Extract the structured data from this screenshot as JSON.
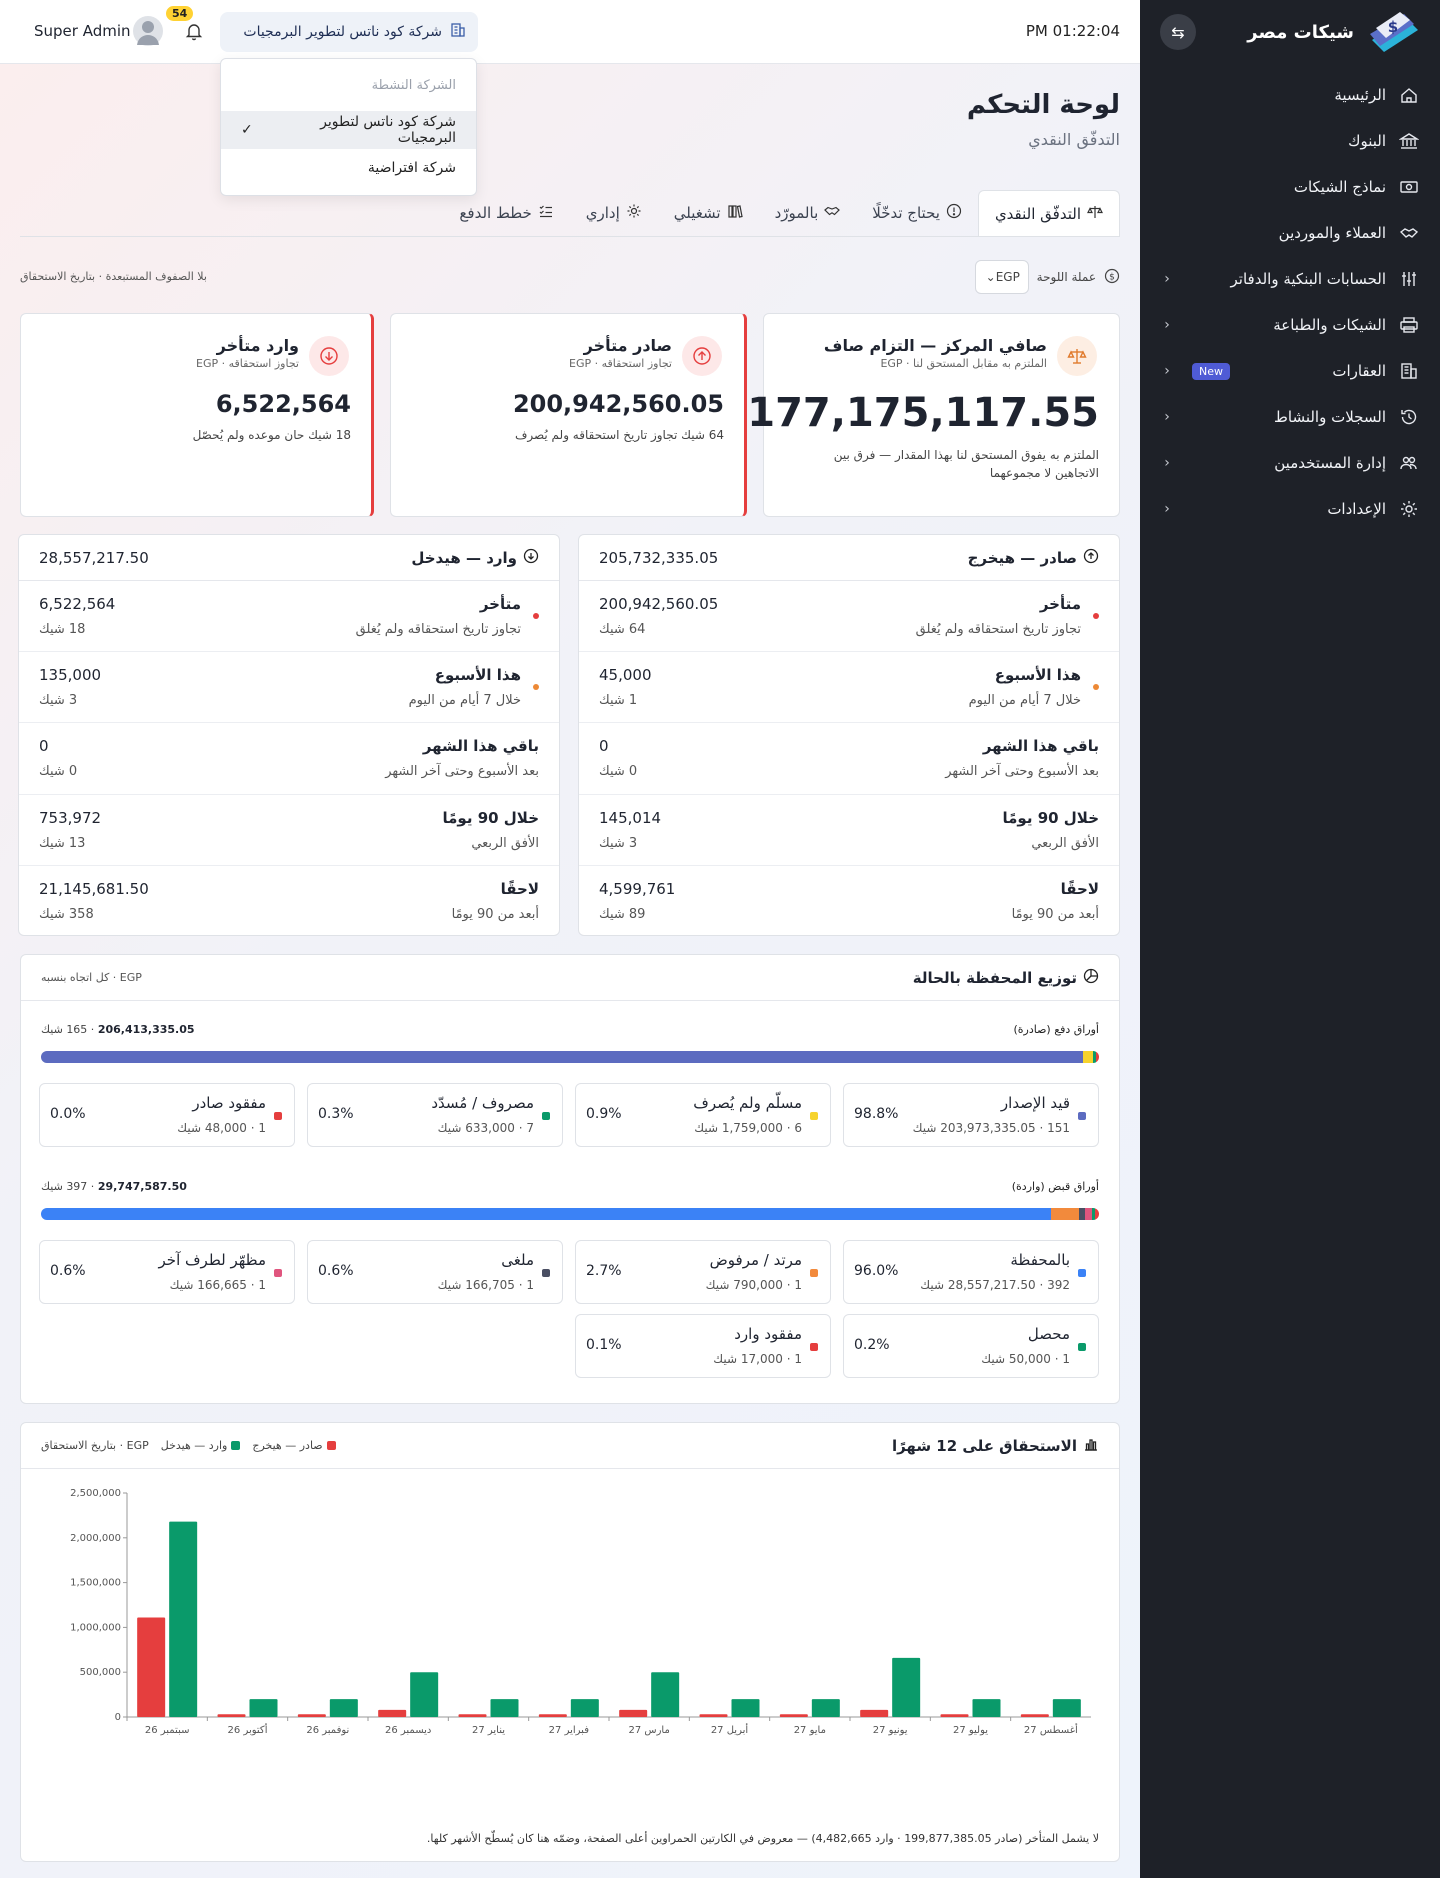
{
  "header": {
    "clock": "PM 01:22:04",
    "company": "شركة كود ناتس لتطوير البرمجيات",
    "notifications": "54",
    "user": "Super Admin"
  },
  "dropdown": {
    "title": "الشركة النشطة",
    "items": [
      {
        "label": "شركة كود ناتس لتطوير البرمجيات",
        "active": true
      },
      {
        "label": "شركة افتراضية",
        "active": false
      }
    ]
  },
  "sidebar": {
    "brand": "شيكات مصر",
    "items": [
      {
        "label": "الرئيسية",
        "icon": "home-icon",
        "chevron": false
      },
      {
        "label": "البنوك",
        "icon": "bank-icon",
        "chevron": false
      },
      {
        "label": "نماذج الشيكات",
        "icon": "cheque-icon",
        "chevron": false
      },
      {
        "label": "العملاء والموردين",
        "icon": "handshake-icon",
        "chevron": false
      },
      {
        "label": "الحسابات البنكية والدفاتر",
        "icon": "sliders-icon",
        "chevron": true
      },
      {
        "label": "الشيكات والطباعة",
        "icon": "printer-icon",
        "chevron": true
      },
      {
        "label": "العقارات",
        "icon": "building-icon",
        "chevron": true,
        "badge": "New"
      },
      {
        "label": "السجلات والنشاط",
        "icon": "history-icon",
        "chevron": true
      },
      {
        "label": "إدارة المستخدمين",
        "icon": "users-icon",
        "chevron": true
      },
      {
        "label": "الإعدادات",
        "icon": "gear-icon",
        "chevron": true
      }
    ]
  },
  "page": {
    "title": "لوحة التحكم",
    "subtitle": "التدفّق النقدي",
    "tabs": [
      {
        "label": "التدفّق النقدي",
        "icon": "scale-icon",
        "active": true
      },
      {
        "label": "يحتاج تدخّلًا",
        "icon": "alert-icon",
        "active": false
      },
      {
        "label": "بالمورّد",
        "icon": "handshake-icon",
        "active": false
      },
      {
        "label": "تشغيلي",
        "icon": "books-icon",
        "active": false
      },
      {
        "label": "إداري",
        "icon": "gear-icon",
        "active": false
      },
      {
        "label": "خطط الدفع",
        "icon": "checklist-icon",
        "active": false
      }
    ],
    "currency_label": "عملة اللوحة",
    "currency": "EGP",
    "note": "بلا الصفوف المستبعدة · بتاريخ الاستحقاق"
  },
  "kpis": {
    "net": {
      "title": "صافي المركز — التزام صاف",
      "sub": "الملتزم به مقابل المستحق لنا · EGP",
      "value": "177,175,117.55",
      "note": "الملتزم به يفوق المستحق لنا بهذا المقدار — فرق بين الاتجاهين لا مجموعهما"
    },
    "out_overdue": {
      "title": "صادر متأخر",
      "sub": "تجاوز استحقاقه · EGP",
      "value": "200,942,560.05",
      "note": "64 شيك تجاوز تاريخ استحقاقه ولم يُصرف"
    },
    "in_overdue": {
      "title": "وارد متأخر",
      "sub": "تجاوز استحقاقه · EGP",
      "value": "6,522,564",
      "note": "18 شيك حان موعده ولم يُحصّل"
    }
  },
  "outgoing": {
    "title": "صادر — هيخرج",
    "total": "205,732,335.05",
    "rows": [
      {
        "label": "متأخر",
        "sub": "تجاوز تاريخ استحقاقه ولم يُغلق",
        "amount": "200,942,560.05",
        "count": "64 شيك",
        "color": "#e53e3e"
      },
      {
        "label": "هذا الأسبوع",
        "sub": "خلال 7 أيام من اليوم",
        "amount": "45,000",
        "count": "1 شيك",
        "color": "#ed8936"
      },
      {
        "label": "باقي هذا الشهر",
        "sub": "بعد الأسبوع وحتى آخر الشهر",
        "amount": "0",
        "count": "0 شيك",
        "color": ""
      },
      {
        "label": "خلال 90 يومًا",
        "sub": "الأفق الربعي",
        "amount": "145,014",
        "count": "3 شيك",
        "color": ""
      },
      {
        "label": "لاحقًا",
        "sub": "أبعد من 90 يومًا",
        "amount": "4,599,761",
        "count": "89 شيك",
        "color": ""
      }
    ]
  },
  "incoming": {
    "title": "وارد — هيدخل",
    "total": "28,557,217.50",
    "rows": [
      {
        "label": "متأخر",
        "sub": "تجاوز تاريخ استحقاقه ولم يُغلق",
        "amount": "6,522,564",
        "count": "18 شيك",
        "color": "#e53e3e"
      },
      {
        "label": "هذا الأسبوع",
        "sub": "خلال 7 أيام من اليوم",
        "amount": "135,000",
        "count": "3 شيك",
        "color": "#ed8936"
      },
      {
        "label": "باقي هذا الشهر",
        "sub": "بعد الأسبوع وحتى آخر الشهر",
        "amount": "0",
        "count": "0 شيك",
        "color": ""
      },
      {
        "label": "خلال 90 يومًا",
        "sub": "الأفق الربعي",
        "amount": "753,972",
        "count": "13 شيك",
        "color": ""
      },
      {
        "label": "لاحقًا",
        "sub": "أبعد من 90 يومًا",
        "amount": "21,145,681.50",
        "count": "358 شيك",
        "color": ""
      }
    ]
  },
  "portfolio": {
    "title": "توزيع المحفظة بالحالة",
    "note": "EGP · كل اتجاه بنسبه",
    "payables": {
      "label": "أوراق دفع (صادرة)",
      "total_amount": "206,413,335.05",
      "total_count": "165 شيك",
      "items": [
        {
          "label": "قيد الإصدار",
          "detail": "151 · 203,973,335.05 شيك",
          "pct": "98.8%",
          "share": 98.8,
          "color": "#5c6bc0"
        },
        {
          "label": "مسلّم ولم يُصرف",
          "detail": "6 · 1,759,000 شيك",
          "pct": "0.9%",
          "share": 0.9,
          "color": "#f6d32d"
        },
        {
          "label": "مصروف / مُسدّد",
          "detail": "7 · 633,000 شيك",
          "pct": "0.3%",
          "share": 0.3,
          "color": "#0a9a6a"
        },
        {
          "label": "مفقود صادر",
          "detail": "1 · 48,000 شيك",
          "pct": "0.0%",
          "share": 0.0,
          "color": "#e53e3e"
        }
      ]
    },
    "receivables": {
      "label": "أوراق قبض (واردة)",
      "total_amount": "29,747,587.50",
      "total_count": "397 شيك",
      "items": [
        {
          "label": "بالمحفظة",
          "detail": "392 · 28,557,217.50 شيك",
          "pct": "96.0%",
          "share": 96.0,
          "color": "#3b82f6"
        },
        {
          "label": "مرتد / مرفوض",
          "detail": "1 · 790,000 شيك",
          "pct": "2.7%",
          "share": 2.7,
          "color": "#f28a3c"
        },
        {
          "label": "ملغى",
          "detail": "1 · 166,705 شيك",
          "pct": "0.6%",
          "share": 0.6,
          "color": "#4a4f63"
        },
        {
          "label": "مظهّر لطرف آخر",
          "detail": "1 · 166,665 شيك",
          "pct": "0.6%",
          "share": 0.6,
          "color": "#e0557e"
        },
        {
          "label": "محصل",
          "detail": "1 · 50,000 شيك",
          "pct": "0.2%",
          "share": 0.2,
          "color": "#0a9a6a"
        },
        {
          "label": "مفقود وارد",
          "detail": "1 · 17,000 شيك",
          "pct": "0.1%",
          "share": 0.1,
          "color": "#e53e3e"
        }
      ]
    }
  },
  "chart_panel": {
    "title": "الاستحقاق على 12 شهرًا",
    "legend_out": "صادر — هيخرج",
    "legend_in": "وارد — هيدخل",
    "legend_note": "EGP · بتاريخ الاستحقاق",
    "footnote": "لا يشمل المتأخر (صادر 199,877,385.05 · وارد 4,482,665) — معروض في الكارتين الحمراوين أعلى الصفحة، وضمّه هنا كان يُسطّح الأشهر كلها."
  },
  "chart_data": {
    "type": "bar",
    "categories": [
      "سبتمبر 26",
      "أكتوبر 26",
      "نوفمبر 26",
      "ديسمبر 26",
      "يناير 27",
      "فبراير 27",
      "مارس 27",
      "أبريل 27",
      "مايو 27",
      "يونيو 27",
      "يوليو 27",
      "أغسطس 27"
    ],
    "series": [
      {
        "name": "صادر — هيخرج",
        "color": "#e53e3e",
        "values": [
          1110000,
          30000,
          30000,
          80000,
          30000,
          30000,
          80000,
          30000,
          30000,
          80000,
          30000,
          30000
        ]
      },
      {
        "name": "وارد — هيدخل",
        "color": "#0a9a6a",
        "values": [
          2180000,
          200000,
          200000,
          500000,
          200000,
          200000,
          500000,
          200000,
          200000,
          660000,
          200000,
          200000
        ]
      }
    ],
    "yticks": [
      "2,500,000",
      "2,000,000",
      "1,500,000",
      "1,000,000",
      "500,000",
      "0"
    ],
    "ylim": [
      0,
      2500000
    ],
    "grid": false
  }
}
